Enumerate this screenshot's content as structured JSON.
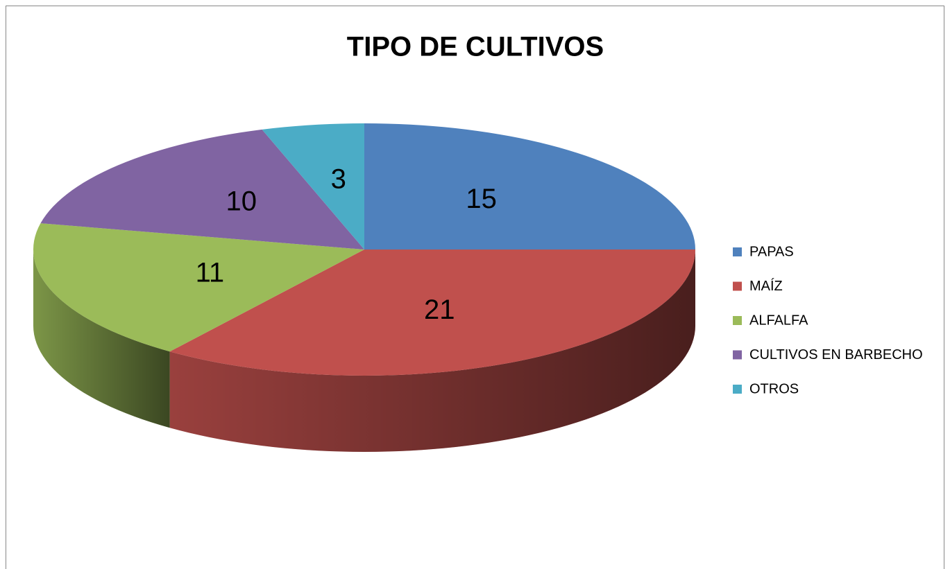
{
  "chart_data": {
    "type": "pie",
    "title": "TIPO DE CULTIVOS",
    "categories": [
      "PAPAS",
      "MAÍZ",
      "ALFALFA",
      "CULTIVOS EN BARBECHO",
      "OTROS"
    ],
    "values": [
      15,
      21,
      11,
      10,
      3
    ],
    "colors": [
      "#4f81bd",
      "#c0504d",
      "#9bbb59",
      "#8064a2",
      "#4bacc6"
    ],
    "legend": "right",
    "three_d": true
  }
}
